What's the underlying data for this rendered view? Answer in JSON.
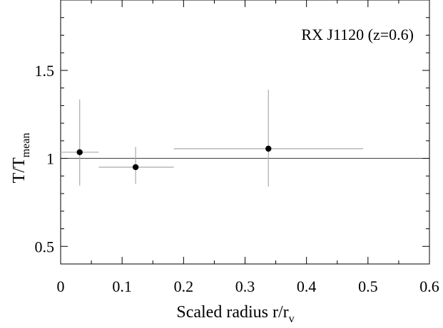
{
  "chart_data": {
    "type": "scatter",
    "annotation": "RX J1120 (z=0.6)",
    "xlabel": {
      "main": "Scaled radius  r/r",
      "sub": "v"
    },
    "ylabel": {
      "main": "T/T",
      "sub": "mean"
    },
    "xlim": [
      0,
      0.6
    ],
    "ylim": [
      0.4,
      1.9
    ],
    "xticks": [
      0,
      0.1,
      0.2,
      0.3,
      0.4,
      0.5,
      0.6
    ],
    "xtick_labels": [
      "0",
      "0.1",
      "0.2",
      "0.3",
      "0.4",
      "0.5",
      "0.6"
    ],
    "yticks": [
      0.5,
      1.0,
      1.5
    ],
    "ytick_labels": [
      "0.5",
      "1",
      "1.5"
    ],
    "reference_line_y": 1.0,
    "grid": false,
    "points": [
      {
        "x": 0.031,
        "y": 1.035,
        "xerr": [
          0.0,
          0.062
        ],
        "yerr": [
          0.845,
          1.335
        ]
      },
      {
        "x": 0.122,
        "y": 0.95,
        "xerr": [
          0.062,
          0.184
        ],
        "yerr": [
          0.855,
          1.065
        ]
      },
      {
        "x": 0.338,
        "y": 1.055,
        "xerr": [
          0.184,
          0.492
        ],
        "yerr": [
          0.84,
          1.39
        ]
      }
    ],
    "colors": {
      "errorbar": "#aaaaaa",
      "marker": "#000000",
      "axis": "#000000"
    }
  }
}
